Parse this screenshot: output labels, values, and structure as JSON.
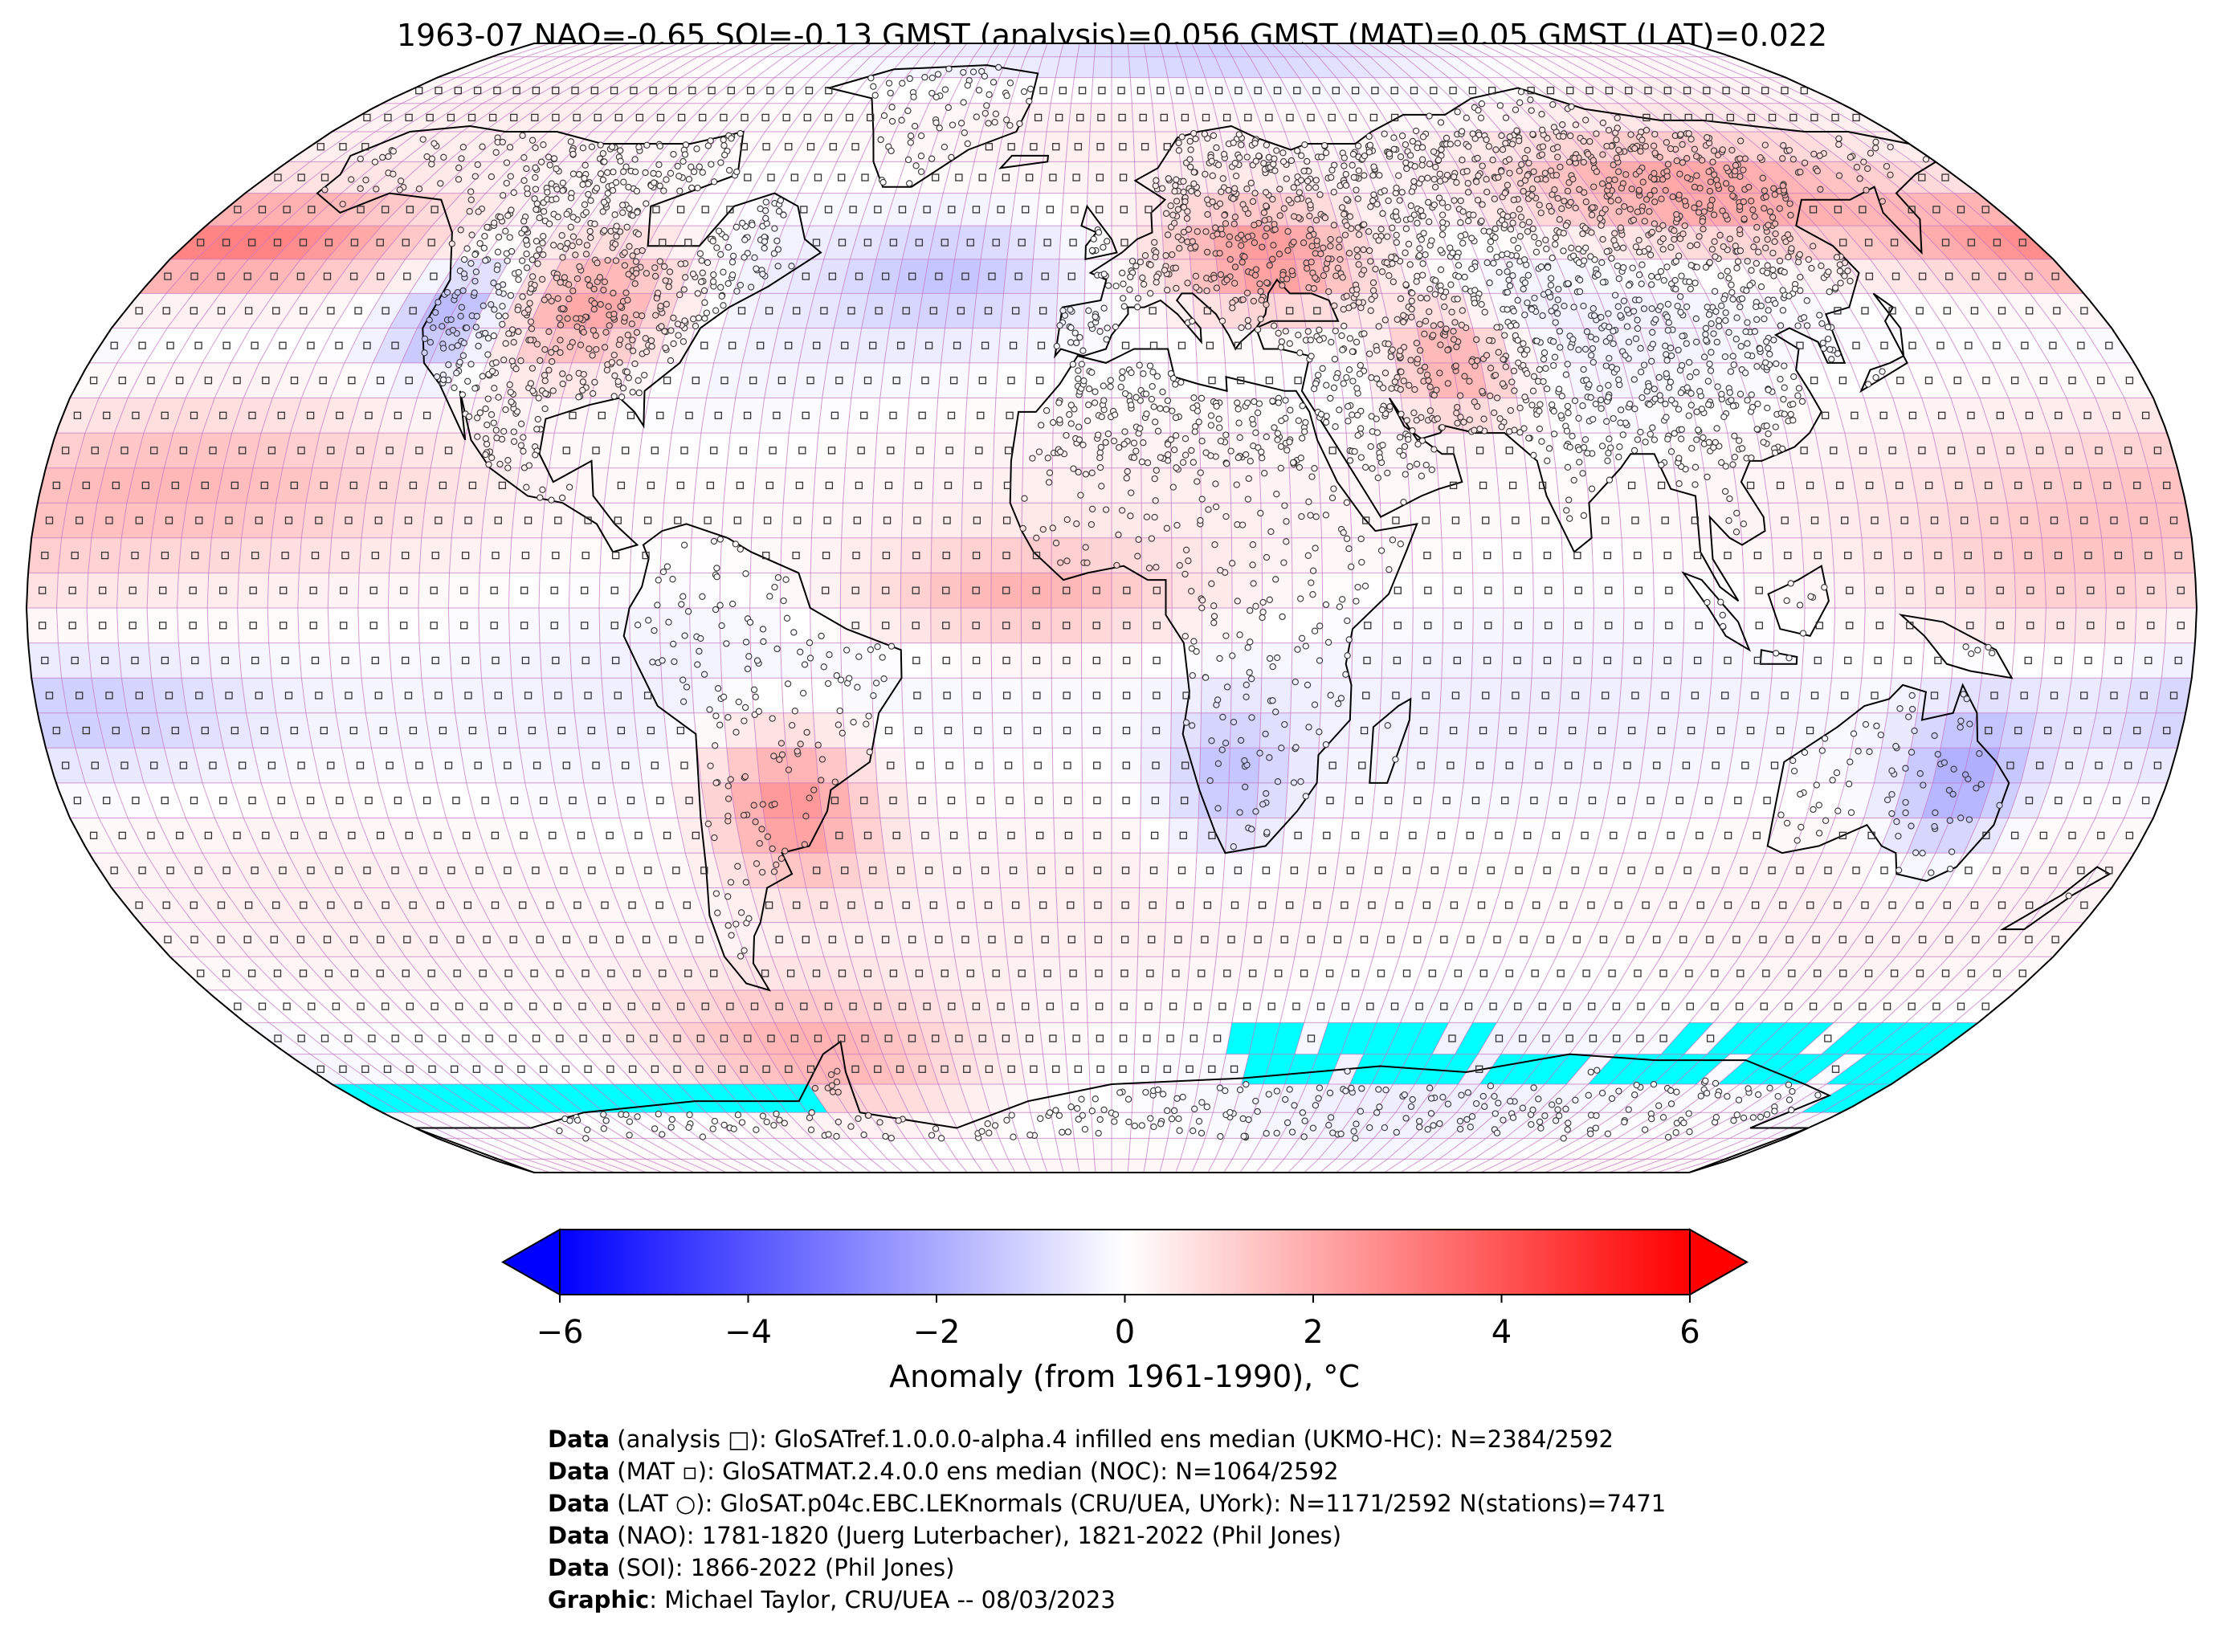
{
  "title": "1963-07 NAO=-0.65 SOI=-0.13 GMST (analysis)=0.056 GMST (MAT)=0.05 GMST (LAT)=0.022",
  "colorbar": {
    "label": "Anomaly (from 1961-1990), °C",
    "ticks": [
      "−6",
      "−4",
      "−2",
      "0",
      "2",
      "4",
      "6"
    ],
    "range": [
      -6,
      6
    ],
    "colormap": [
      "#0000ff",
      "#ffffff",
      "#ff0000"
    ],
    "extend": "both"
  },
  "map": {
    "projection": "Robinson",
    "grid_step_deg": 5,
    "no_data_color": "#00ffff",
    "land_outline_color": "#000000",
    "grid_color": "#c070c0"
  },
  "credits": [
    {
      "key": "Data",
      "text": " (analysis □): GloSATref.1.0.0.0-alpha.4 infilled ens median (UKMO-HC): N=2384/2592"
    },
    {
      "key": "Data",
      "text": " (MAT ▫): GloSATMAT.2.4.0.0 ens median (NOC): N=1064/2592"
    },
    {
      "key": "Data",
      "text": " (LAT ○): GloSAT.p04c.EBC.LEKnormals (CRU/UEA, UYork): N=1171/2592 N(stations)=7471"
    },
    {
      "key": "Data",
      "text": " (NAO): 1781-1820 (Juerg Luterbacher), 1821-2022 (Phil Jones)"
    },
    {
      "key": "Data",
      "text": " (SOI): 1866-2022 (Phil Jones)"
    },
    {
      "key": "Graphic",
      "text": ": Michael Taylor, CRU/UEA -- 08/03/2023"
    }
  ]
}
